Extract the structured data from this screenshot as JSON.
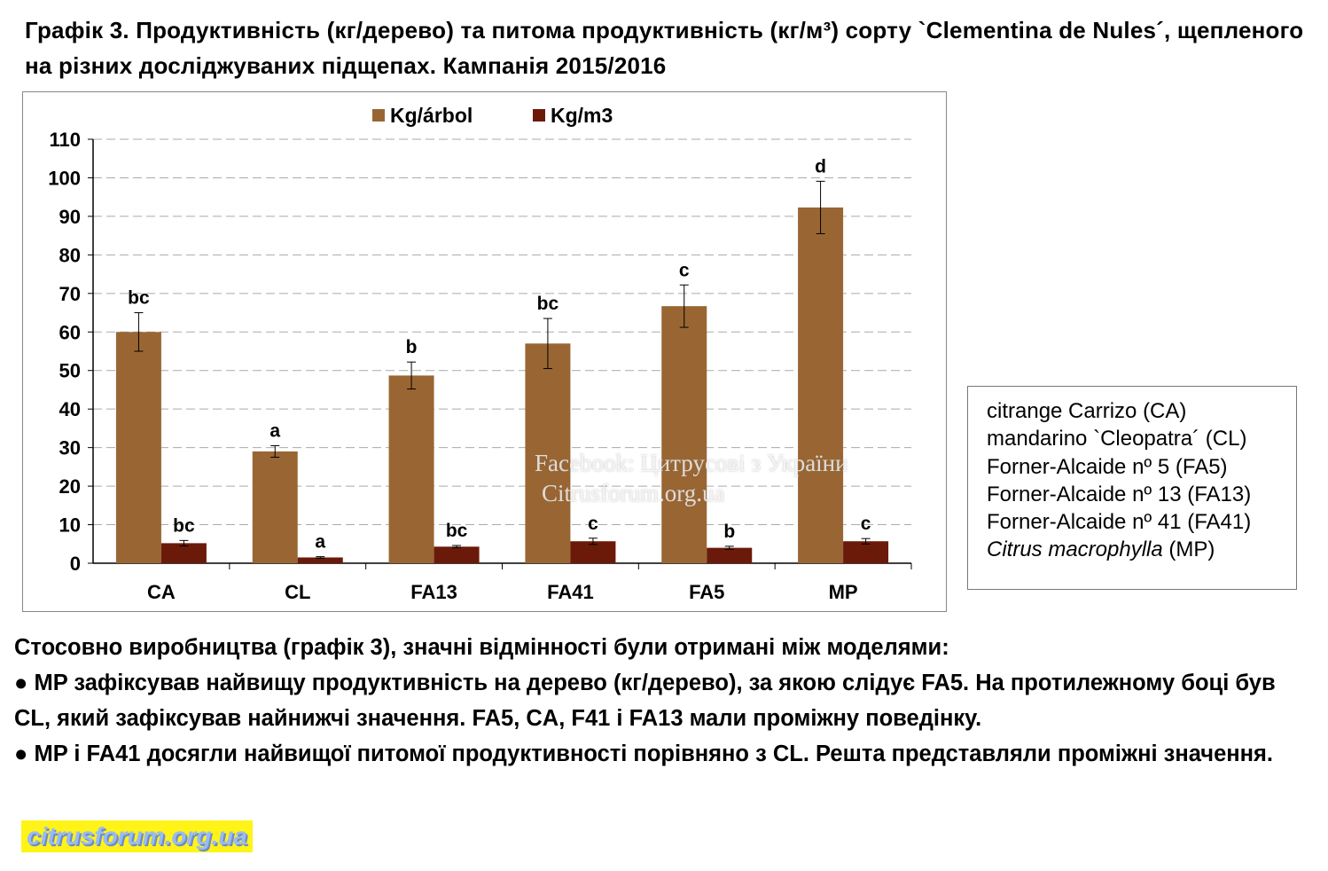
{
  "title": "Графік 3. Продуктивність (кг/дерево) та питома продуктивність (кг/м³) сорту `Clementina de Nules´, щепленого на різних досліджуваних підщепах. Кампанія 2015/2016",
  "chart_data": {
    "type": "bar",
    "categories": [
      "CA",
      "CL",
      "FA13",
      "FA41",
      "FA5",
      "MP"
    ],
    "series": [
      {
        "name": "Kg/árbol",
        "color": "#996633",
        "values": [
          60,
          29,
          48.7,
          57,
          66.7,
          92.3
        ],
        "errors": [
          5,
          1.5,
          3.5,
          6.5,
          5.5,
          6.8
        ],
        "labels": [
          "bc",
          "a",
          "b",
          "bc",
          "c",
          "d"
        ]
      },
      {
        "name": "Kg/m3",
        "color": "#6b1a0a",
        "values": [
          5.2,
          1.5,
          4.3,
          5.7,
          4.0,
          5.7
        ],
        "errors": [
          0.7,
          0.2,
          0.3,
          0.8,
          0.4,
          0.7
        ],
        "labels": [
          "bc",
          "a",
          "bc",
          "c",
          "b",
          "c"
        ]
      }
    ],
    "ylim": [
      0,
      110
    ],
    "yticks": [
      0,
      10,
      20,
      30,
      40,
      50,
      60,
      70,
      80,
      90,
      100,
      110
    ],
    "grid": true,
    "legend_placement": "top-center"
  },
  "legend_box": [
    "citrange Carrizo (CA)",
    "mandarino `Cleopatra´ (CL)",
    "Forner-Alcaide nº 5 (FA5)",
    "Forner-Alcaide nº 13 (FA13)",
    "Forner-Alcaide nº 41 (FA41)"
  ],
  "legend_box_last": {
    "italic": "Citrus macrophylla",
    "rest": " (MP)"
  },
  "body": [
    "Стосовно виробництва (графік 3), значні відмінності були отримані між моделями:",
    "● MP зафіксував найвищу продуктивність на дерево (кг/дерево), за якою слідує FA5. На протилежному боці був CL, який зафіксував найнижчі значення. FA5, CA, F41 і FA13 мали проміжну поведінку.",
    "● MP і FA41 досягли найвищої питомої продуктивності порівняно з CL. Решта представляли проміжні значення."
  ],
  "watermark": {
    "site": "citrusforum.org.ua",
    "overlay_1": "Facebook: Цитрусові з України",
    "overlay_2": "Citrusforum.org.ua"
  }
}
